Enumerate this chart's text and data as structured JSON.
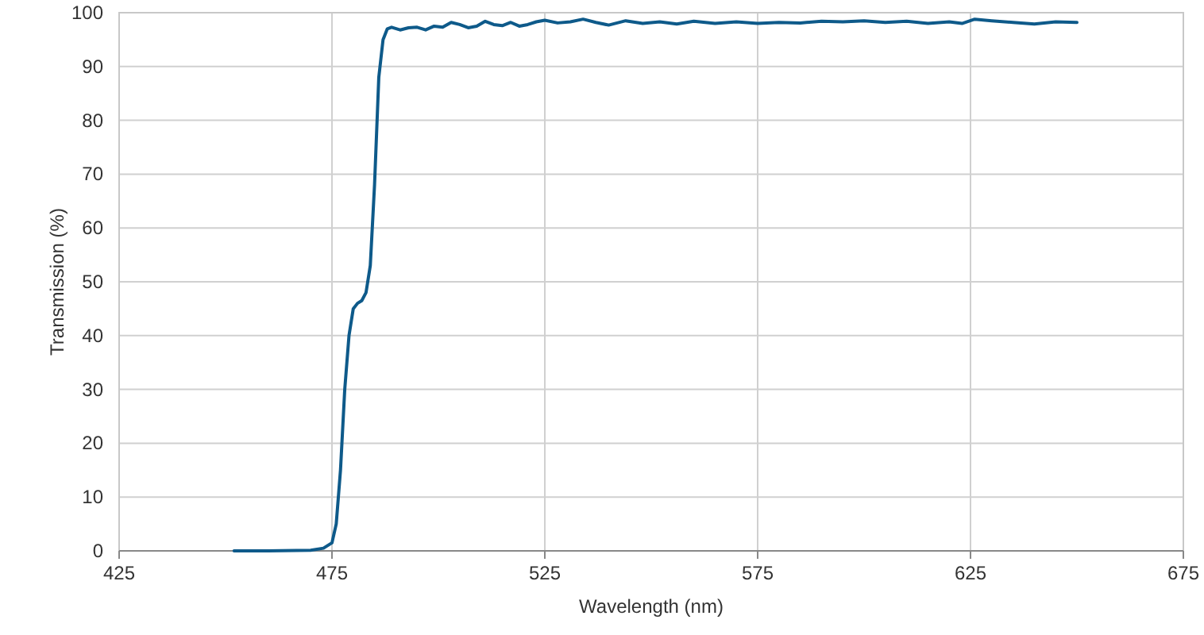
{
  "chart_data": {
    "type": "line",
    "xlabel": "Wavelength (nm)",
    "ylabel": "Transmission (%)",
    "xlim": [
      425,
      675
    ],
    "xticks": [
      425,
      475,
      525,
      575,
      625,
      675
    ],
    "ylim": [
      0,
      100
    ],
    "yticks": [
      0,
      10,
      20,
      30,
      40,
      50,
      60,
      70,
      80,
      90,
      100
    ],
    "grid": true,
    "marker": "none",
    "line_style": "solid",
    "series": [
      {
        "color": "#0e5a8a",
        "x": [
          452,
          460,
          470,
          473,
          475,
          476,
          477,
          478,
          479,
          480,
          481,
          482,
          483,
          484,
          485,
          486,
          487,
          488,
          489,
          491,
          493,
          495,
          497,
          499,
          501,
          503,
          505,
          507,
          509,
          511,
          513,
          515,
          517,
          519,
          521,
          523,
          525,
          528,
          531,
          534,
          537,
          540,
          544,
          548,
          552,
          556,
          560,
          565,
          570,
          575,
          580,
          585,
          590,
          595,
          600,
          605,
          610,
          615,
          620,
          623,
          626,
          630,
          635,
          640,
          645,
          650
        ],
        "values": [
          0,
          0,
          0.1,
          0.5,
          1.5,
          5,
          15,
          30,
          40,
          45,
          46,
          46.5,
          48,
          53,
          68,
          88,
          95,
          97,
          97.3,
          96.8,
          97.2,
          97.3,
          96.8,
          97.5,
          97.3,
          98.2,
          97.8,
          97.2,
          97.5,
          98.4,
          97.8,
          97.6,
          98.2,
          97.5,
          97.8,
          98.3,
          98.6,
          98.1,
          98.3,
          98.8,
          98.2,
          97.7,
          98.5,
          98.0,
          98.3,
          97.9,
          98.4,
          98.0,
          98.3,
          98.0,
          98.2,
          98.1,
          98.4,
          98.3,
          98.5,
          98.2,
          98.4,
          98.0,
          98.3,
          98.0,
          98.8,
          98.5,
          98.2,
          97.9,
          98.3,
          98.2
        ]
      }
    ]
  }
}
